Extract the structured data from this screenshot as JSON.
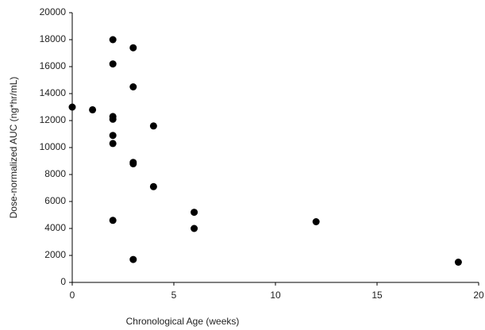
{
  "chart_data": {
    "type": "scatter",
    "x_label": "Chronological Age (weeks)",
    "y_label": "Dose-normalized AUC (ng*hr/mL)",
    "x": [
      0,
      1,
      2,
      2,
      2,
      2,
      2,
      2,
      2,
      3,
      3,
      3,
      3,
      3,
      4,
      4,
      6,
      6,
      12,
      19
    ],
    "values": [
      13000,
      12800,
      18000,
      16200,
      12300,
      12100,
      10900,
      10300,
      4600,
      17400,
      14500,
      8900,
      8800,
      1700,
      11600,
      7100,
      5200,
      4000,
      4500,
      1500
    ],
    "color": "#000000",
    "xlim": [
      0,
      20
    ],
    "xticks": [
      0,
      5,
      10,
      15,
      20
    ],
    "ylim": [
      0,
      20000
    ],
    "yticks": [
      0,
      2000,
      4000,
      6000,
      8000,
      10000,
      12000,
      14000,
      16000,
      18000,
      20000
    ],
    "grid": false
  }
}
